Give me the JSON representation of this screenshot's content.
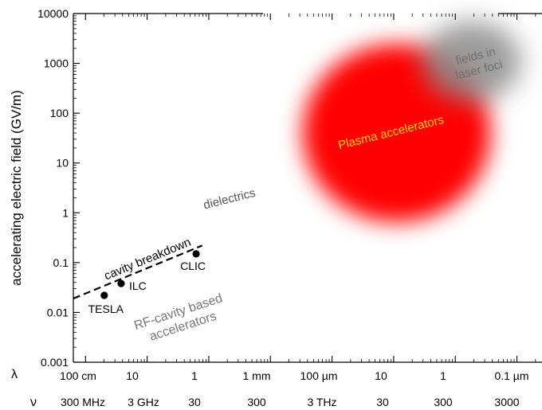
{
  "chart_data": {
    "type": "scatter",
    "title": "",
    "ylabel": "accelerating electric field (GV/m)",
    "yscale": "log",
    "ylim": [
      0.001,
      10000
    ],
    "xlim": [
      0,
      1
    ],
    "y_tick_labels": [
      "10000",
      "1000",
      "100",
      "10",
      "1",
      "0.1",
      "0.01",
      "0.001"
    ],
    "wavelength_axis": {
      "symbol": "λ",
      "labels": [
        "100 cm",
        "10",
        "1",
        "1 mm",
        "100 µm",
        "10",
        "1",
        "0.1 µm"
      ]
    },
    "frequency_axis": {
      "symbol": "ν",
      "labels": [
        "300 MHz",
        "3 GHz",
        "30",
        "300",
        "3 THz",
        "30",
        "300",
        "3000"
      ]
    },
    "points": [
      {
        "label": "TESLA",
        "x": 0.066,
        "y": 0.022
      },
      {
        "label": "ILC",
        "x": 0.102,
        "y": 0.038
      },
      {
        "label": "CLIC",
        "x": 0.262,
        "y": 0.15
      }
    ],
    "cavity_breakdown_line": {
      "label": "cavity breakdown",
      "from": {
        "x": 0.0,
        "y": 0.019
      },
      "to": {
        "x": 0.275,
        "y": 0.22
      }
    },
    "regions": [
      {
        "label": "Plasma accelerators",
        "x": 0.69,
        "y": 40,
        "color": "#ff0000",
        "label_color": "#ffcc00"
      },
      {
        "label_lines": [
          "fields in",
          "laser foci"
        ],
        "x": 0.85,
        "y": 1100,
        "color": "#8a8a8a",
        "label_color": "#6f6f6f"
      }
    ],
    "annotations": [
      {
        "text": "dielectrics",
        "x": 0.335,
        "y": 1.6,
        "color": "#555555"
      },
      {
        "text_lines": [
          "RF-cavity based",
          "accelerators"
        ],
        "x": 0.07,
        "y": 0.008,
        "color": "#777777"
      }
    ]
  }
}
